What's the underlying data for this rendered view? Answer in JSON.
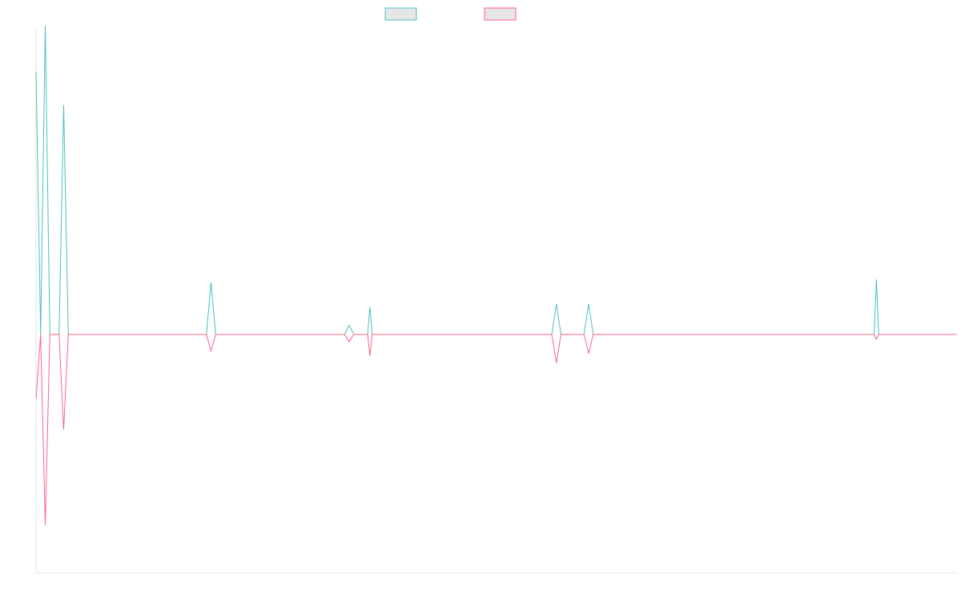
{
  "chart_data": {
    "type": "line",
    "title": "",
    "xlabel": "",
    "ylabel": "",
    "legend_position": "top-center",
    "grid": false,
    "x": [
      0,
      1,
      2,
      3,
      4,
      5,
      6,
      7,
      8,
      9,
      10,
      11,
      12,
      13,
      14,
      15,
      16,
      17,
      18,
      19,
      20,
      21,
      22,
      23,
      24,
      25,
      26,
      27,
      28,
      29,
      30,
      31,
      32,
      33,
      34,
      35,
      36,
      37,
      38,
      39,
      40,
      41,
      42,
      43,
      44,
      45,
      46,
      47,
      48,
      49,
      50,
      51,
      52,
      53,
      54,
      55,
      56,
      57,
      58,
      59,
      60,
      61,
      62,
      63,
      64,
      65,
      66,
      67,
      68,
      69,
      70,
      71,
      72,
      73,
      74,
      75,
      76,
      77,
      78,
      79,
      80,
      81,
      82,
      83,
      84,
      85,
      86,
      87,
      88,
      89,
      90,
      91,
      92,
      93,
      94,
      95,
      96,
      97,
      98,
      99,
      100,
      101,
      102,
      103,
      104,
      105,
      106,
      107,
      108,
      109,
      110,
      111,
      112,
      113,
      114,
      115,
      116,
      117,
      118,
      119,
      120,
      121,
      122,
      123,
      124,
      125,
      126,
      127,
      128,
      129,
      130,
      131,
      132,
      133,
      134,
      135,
      136,
      137,
      138,
      139,
      140,
      141,
      142,
      143,
      144,
      145,
      146,
      147,
      148,
      149,
      150,
      151,
      152,
      153,
      154,
      155,
      156,
      157,
      158,
      159,
      160,
      161,
      162,
      163,
      164,
      165,
      166,
      167,
      168,
      169,
      170,
      171,
      172,
      173,
      174,
      175,
      176,
      177,
      178,
      179,
      180,
      181,
      182,
      183,
      184,
      185,
      186,
      187,
      188,
      189,
      190,
      191,
      192,
      193,
      194,
      195,
      196,
      197,
      198,
      199,
      200
    ],
    "xlim": [
      0,
      200
    ],
    "ylim": [
      -100,
      100
    ],
    "series": [
      {
        "color": "#4bc0c0",
        "fill": "#e6e6e6",
        "values": [
          86,
          0,
          101,
          0,
          0,
          0,
          75,
          0,
          0,
          0,
          0,
          0,
          0,
          0,
          0,
          0,
          0,
          0,
          0,
          0,
          0,
          0,
          0,
          0,
          0,
          0,
          0,
          0,
          0,
          0,
          0,
          0,
          0,
          0,
          0,
          0,
          0,
          0,
          0,
          0,
          0,
          0,
          0,
          0,
          0,
          0,
          0,
          0,
          0,
          0,
          0,
          0,
          0,
          0,
          0,
          0,
          0,
          0,
          0,
          0,
          0,
          0,
          0,
          0,
          0,
          0,
          0,
          0,
          0,
          0,
          0,
          0,
          0,
          0,
          0,
          0,
          0,
          0,
          0,
          0,
          0,
          0,
          0,
          0,
          0,
          0,
          0,
          0,
          0,
          0,
          0,
          0,
          0,
          0,
          0,
          0,
          0,
          0,
          0,
          0,
          0,
          0,
          0,
          0,
          0,
          0,
          0,
          0,
          0,
          0,
          0,
          0,
          0,
          0,
          0,
          0,
          0,
          0,
          0,
          0,
          0,
          0,
          0,
          0,
          0,
          0,
          0,
          0,
          0,
          0,
          0,
          0,
          0,
          0,
          0,
          0,
          0,
          0,
          0,
          0,
          0,
          0,
          0,
          0,
          0,
          0,
          0,
          0,
          0,
          0,
          0,
          0,
          0,
          0,
          0,
          0,
          0,
          0,
          0,
          0,
          0,
          0,
          0,
          0,
          0,
          0,
          0,
          0,
          0,
          0,
          0,
          0,
          0,
          0,
          0,
          0,
          0,
          0,
          0,
          0,
          0,
          0,
          0,
          0,
          0,
          0,
          0,
          0,
          0,
          0,
          0,
          0,
          0,
          0,
          0,
          0,
          0,
          0,
          0,
          0,
          0
        ]
      },
      {
        "color": "#ff6384",
        "fill": "#e6e6e6",
        "values": [
          -27,
          0,
          -80,
          0,
          0,
          0,
          -40,
          0,
          0,
          0,
          0,
          0,
          0,
          0,
          0,
          0,
          0,
          0,
          0,
          0,
          0,
          0,
          0,
          0,
          0,
          0,
          0,
          0,
          0,
          0,
          0,
          0,
          0,
          0,
          0,
          0,
          0,
          0,
          0,
          0,
          0,
          0,
          0,
          0,
          0,
          0,
          0,
          0,
          0,
          0,
          0,
          0,
          0,
          0,
          0,
          0,
          0,
          0,
          0,
          0,
          0,
          0,
          0,
          0,
          0,
          0,
          0,
          0,
          0,
          0,
          0,
          0,
          0,
          0,
          0,
          0,
          0,
          0,
          0,
          0,
          0,
          0,
          0,
          0,
          0,
          0,
          0,
          0,
          0,
          0,
          0,
          0,
          0,
          0,
          0,
          0,
          0,
          0,
          0,
          0,
          0,
          0,
          0,
          0,
          0,
          0,
          0,
          0,
          0,
          0,
          0,
          0,
          0,
          0,
          0,
          0,
          0,
          0,
          0,
          0,
          0,
          0,
          0,
          0,
          0,
          0,
          0,
          0,
          0,
          0,
          0,
          0,
          0,
          0,
          0,
          0,
          0,
          0,
          0,
          0,
          0,
          0,
          0,
          0,
          0,
          0,
          0,
          0,
          0,
          0,
          0,
          0,
          0,
          0,
          0,
          0,
          0,
          0,
          0,
          0,
          0,
          0,
          0,
          0,
          0,
          0,
          0,
          0,
          0,
          0,
          0,
          0,
          0,
          0,
          0,
          0,
          0,
          0,
          0,
          0,
          0,
          0,
          0,
          0,
          0,
          0,
          0,
          0,
          0,
          0,
          0,
          0,
          0,
          0,
          0,
          0,
          0,
          0,
          0,
          0,
          0
        ]
      }
    ],
    "spikes": [
      {
        "series": 0,
        "x": 38,
        "y": 17
      },
      {
        "series": 1,
        "x": 38,
        "y": -7
      },
      {
        "series": 0,
        "x": 68,
        "y": 3
      },
      {
        "series": 1,
        "x": 68,
        "y": -3
      },
      {
        "series": 0,
        "x": 72.5,
        "y": 9
      },
      {
        "series": 1,
        "x": 72.5,
        "y": -9
      },
      {
        "series": 0,
        "x": 113,
        "y": 10
      },
      {
        "series": 1,
        "x": 113,
        "y": -12
      },
      {
        "series": 0,
        "x": 120,
        "y": 10
      },
      {
        "series": 1,
        "x": 120,
        "y": -8
      },
      {
        "series": 0,
        "x": 182.5,
        "y": 18
      },
      {
        "series": 1,
        "x": 182.5,
        "y": -2
      }
    ]
  }
}
